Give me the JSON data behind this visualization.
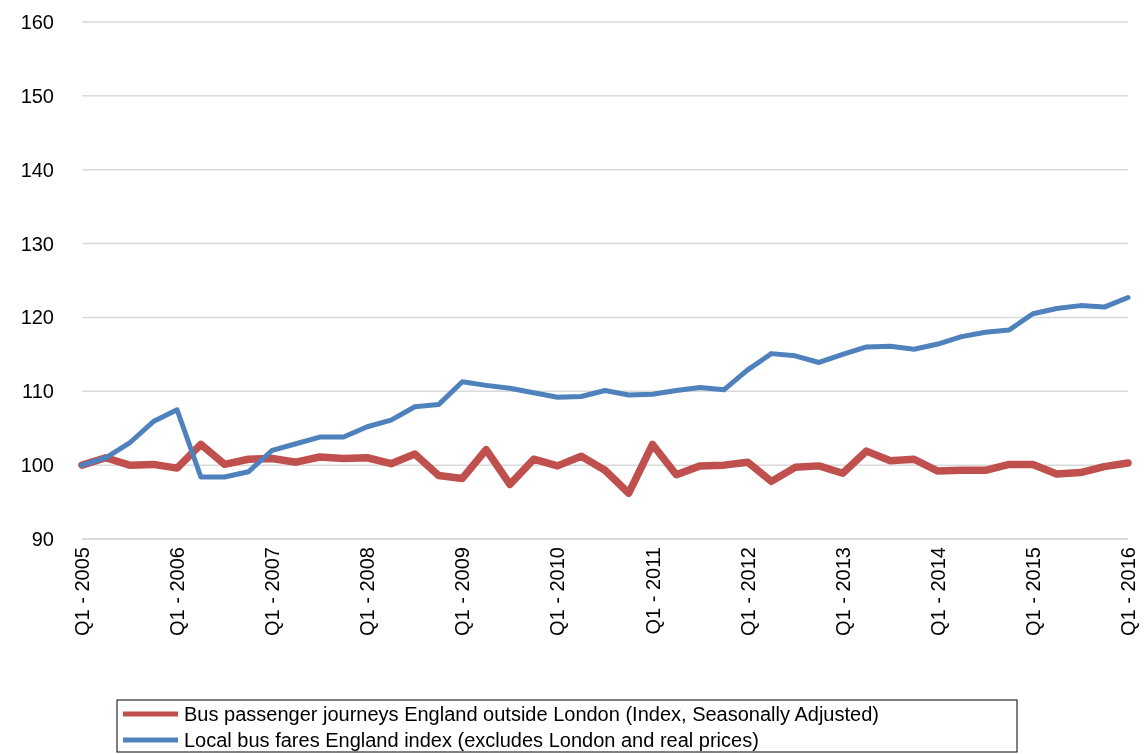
{
  "chart_data": {
    "type": "line",
    "categories": [
      "Q1 - 2005",
      null,
      null,
      null,
      "Q1 - 2006",
      null,
      null,
      null,
      "Q1 - 2007",
      null,
      null,
      null,
      "Q1 - 2008",
      null,
      null,
      null,
      "Q1 - 2009",
      null,
      null,
      null,
      "Q1 - 2010",
      null,
      null,
      null,
      "Q1 - 2011",
      null,
      null,
      null,
      "Q1 - 2012",
      null,
      null,
      null,
      "Q1 - 2013",
      null,
      null,
      null,
      "Q1 - 2014",
      null,
      null,
      null,
      "Q1 - 2015",
      null,
      null,
      null,
      "Q1 - 2016"
    ],
    "series": [
      {
        "name": "Bus passenger journeys England outside London (Index, Seasonally Adjusted)",
        "color": "#c0504d",
        "values": [
          100,
          101,
          100,
          100.1,
          99.6,
          102.8,
          100.1,
          100.8,
          100.9,
          100.4,
          101.1,
          100.9,
          101,
          100.2,
          101.5,
          98.6,
          98.2,
          102.1,
          97.4,
          100.8,
          99.9,
          101.2,
          99.3,
          96.2,
          102.8,
          98.7,
          99.9,
          100,
          100.4,
          97.8,
          99.7,
          99.9,
          98.9,
          101.9,
          100.6,
          100.8,
          99.2,
          99.3,
          99.3,
          100.1,
          100.1,
          98.8,
          99,
          99.8,
          100.3
        ]
      },
      {
        "name": "Local bus fares England index (excludes London and real prices)",
        "color": "#4f81bd",
        "values": [
          100,
          101,
          103,
          105.9,
          107.5,
          98.4,
          98.4,
          99.1,
          102,
          102.9,
          103.8,
          103.8,
          105.2,
          106.1,
          107.9,
          108.2,
          111.3,
          110.8,
          110.4,
          109.8,
          109.2,
          109.3,
          110.1,
          109.5,
          109.6,
          110.1,
          110.5,
          110.2,
          112.9,
          115.1,
          114.8,
          113.9,
          115,
          116,
          116.1,
          115.7,
          116.4,
          117.4,
          118,
          118.3,
          120.5,
          121.2,
          121.6,
          121.4,
          122.7
        ]
      }
    ],
    "ylim": [
      90,
      160
    ],
    "yticks": [
      90,
      100,
      110,
      120,
      130,
      140,
      150,
      160
    ],
    "grid": "y",
    "legend": "bottom",
    "marker": "none",
    "line_style": "solid"
  }
}
